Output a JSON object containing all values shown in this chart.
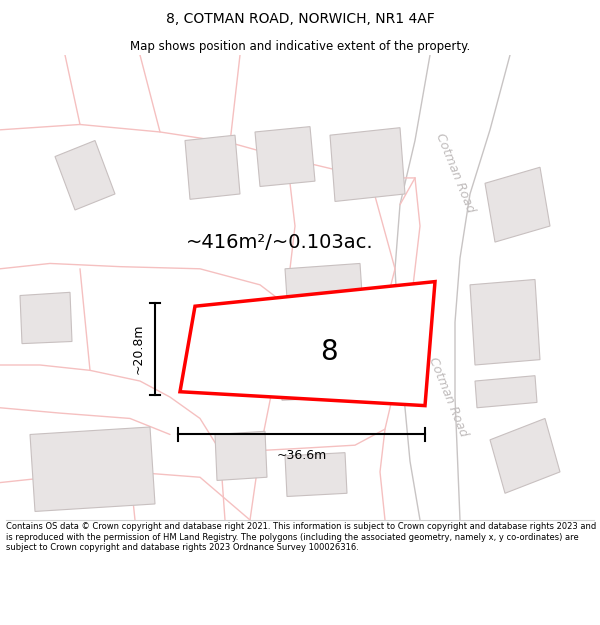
{
  "title": "8, COTMAN ROAD, NORWICH, NR1 4AF",
  "subtitle": "Map shows position and indicative extent of the property.",
  "footer": "Contains OS data © Crown copyright and database right 2021. This information is subject to Crown copyright and database rights 2023 and is reproduced with the permission of HM Land Registry. The polygons (including the associated geometry, namely x, y co-ordinates) are subject to Crown copyright and database rights 2023 Ordnance Survey 100026316.",
  "area_label": "~416m²/~0.103ac.",
  "dim_width": "~36.6m",
  "dim_height": "~20.8m",
  "number_label": "8",
  "bg_color": "#ffffff",
  "map_bg": "#ffffff",
  "road_color": "#f5c0c0",
  "road_edge_color": "#d8a0a0",
  "building_fill": "#e8e4e4",
  "building_edge": "#c8c0c0",
  "road_label_color": "#c0bcbc",
  "cotman_road_label": "Cotman Road",
  "title_fontsize": 10,
  "subtitle_fontsize": 8.5,
  "area_fontsize": 14,
  "dim_fontsize": 9
}
